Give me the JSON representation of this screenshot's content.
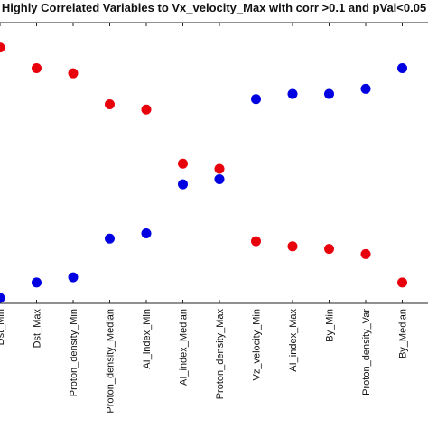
{
  "chart_data": {
    "type": "scatter",
    "title": "Highly Correlated Variables to Vx_velocity_Max with corr >0.1 and pVal<0.05",
    "categories": [
      "Dst_Min",
      "Dst_Max",
      "Proton_density_Min",
      "Proton_density_Median",
      "AI_index_Min",
      "AI_index_Median",
      "Proton_density_Max",
      "Vz_velocity_Min",
      "AI_index_Max",
      "By_Min",
      "Proton_density_Var",
      "By_Median"
    ],
    "series": [
      {
        "color": "#e8000b",
        "values": [
          0.97,
          0.89,
          0.87,
          0.75,
          0.73,
          0.52,
          0.5,
          0.22,
          0.2,
          0.19,
          0.17,
          0.06
        ]
      },
      {
        "color": "#0000e0",
        "values": [
          0.0,
          0.06,
          0.08,
          0.23,
          0.25,
          0.44,
          0.46,
          0.77,
          0.79,
          0.79,
          0.81,
          0.89
        ]
      }
    ],
    "ylim": [
      0,
      1
    ],
    "grid": false,
    "legend": "none"
  }
}
